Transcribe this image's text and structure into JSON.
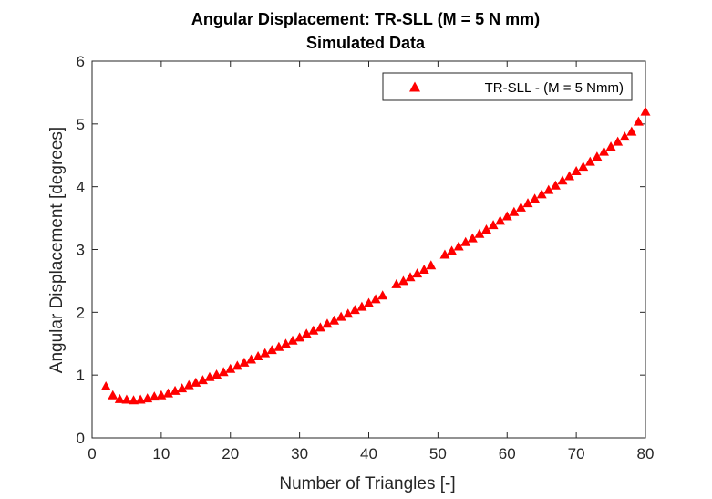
{
  "chart_data": {
    "type": "scatter",
    "title": "Angular Displacement: TR-SLL (M = 5 N mm)",
    "subtitle": "Simulated Data",
    "xlabel": "Number of Triangles [-]",
    "ylabel": "Angular Displacement [degrees]",
    "xlim": [
      0,
      80
    ],
    "ylim": [
      0,
      6
    ],
    "xticks": [
      0,
      10,
      20,
      30,
      40,
      50,
      60,
      70,
      80
    ],
    "yticks": [
      0,
      1,
      2,
      3,
      4,
      5,
      6
    ],
    "grid": false,
    "legend_position": "top-right",
    "series": [
      {
        "name": "TR-SLL - (M = 5 Nmm)",
        "marker": "triangle",
        "color": "#ff0000",
        "x": [
          2,
          3,
          4,
          5,
          6,
          7,
          8,
          9,
          10,
          11,
          12,
          13,
          14,
          15,
          16,
          17,
          18,
          19,
          20,
          21,
          22,
          23,
          24,
          25,
          26,
          27,
          28,
          29,
          30,
          31,
          32,
          33,
          34,
          35,
          36,
          37,
          38,
          39,
          40,
          41,
          42,
          44,
          45,
          46,
          47,
          48,
          49,
          51,
          52,
          53,
          54,
          55,
          56,
          57,
          58,
          59,
          60,
          61,
          62,
          63,
          64,
          65,
          66,
          67,
          68,
          69,
          70,
          71,
          72,
          73,
          74,
          75,
          76,
          77,
          78,
          79,
          80
        ],
        "y": [
          0.82,
          0.68,
          0.62,
          0.61,
          0.6,
          0.61,
          0.63,
          0.66,
          0.68,
          0.71,
          0.75,
          0.79,
          0.84,
          0.88,
          0.92,
          0.97,
          1.01,
          1.05,
          1.1,
          1.15,
          1.2,
          1.25,
          1.3,
          1.35,
          1.4,
          1.45,
          1.5,
          1.55,
          1.6,
          1.66,
          1.71,
          1.76,
          1.82,
          1.87,
          1.93,
          1.98,
          2.04,
          2.09,
          2.15,
          2.21,
          2.27,
          2.45,
          2.5,
          2.56,
          2.62,
          2.68,
          2.75,
          2.92,
          2.98,
          3.05,
          3.12,
          3.18,
          3.25,
          3.32,
          3.39,
          3.46,
          3.53,
          3.6,
          3.67,
          3.74,
          3.81,
          3.88,
          3.95,
          4.02,
          4.1,
          4.17,
          4.25,
          4.32,
          4.4,
          4.48,
          4.56,
          4.64,
          4.72,
          4.8,
          4.88,
          5.04,
          5.2
        ]
      }
    ]
  }
}
